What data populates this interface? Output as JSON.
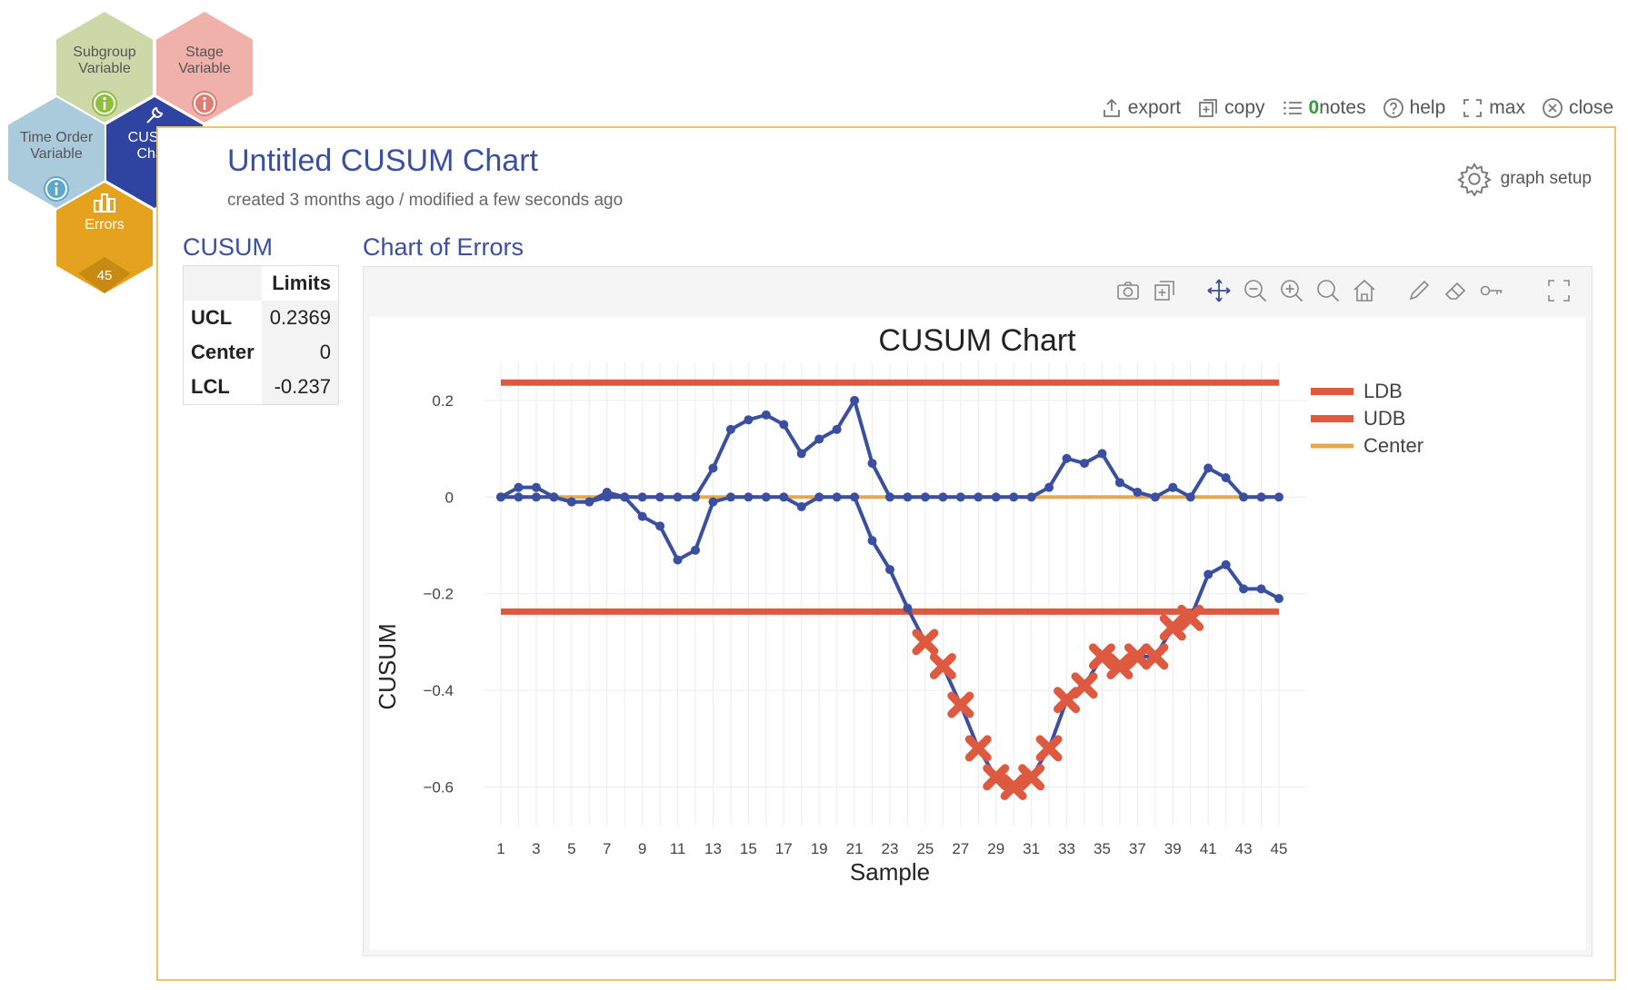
{
  "nav": {
    "subgroup_label": "Subgroup Variable",
    "stage_label": "Stage Variable",
    "time_label": "Time Order Variable",
    "cusum_label": "CUSUM Chart",
    "errors_label": "Errors",
    "errors_count": "45"
  },
  "toolbar": {
    "export": "export",
    "copy": "copy",
    "notes_count": "0",
    "notes": "notes",
    "help": "help",
    "max": "max",
    "close": "close"
  },
  "page": {
    "title": "Untitled CUSUM Chart",
    "meta": "created 3 months ago / modified a few seconds ago",
    "graph_setup": "graph setup"
  },
  "limits_section": {
    "title": "CUSUM",
    "header": "Limits",
    "rows": [
      {
        "label": "UCL",
        "value": "0.2369"
      },
      {
        "label": "Center",
        "value": "0"
      },
      {
        "label": "LCL",
        "value": "-0.237"
      }
    ]
  },
  "chart_section": {
    "title": "Chart of Errors"
  },
  "colors": {
    "series": "#3b4fa0",
    "limit": "#dd5a40",
    "center": "#e5a84b",
    "out_marker": "#dd5a40"
  },
  "chart_data": {
    "type": "line",
    "title": "CUSUM Chart",
    "xlabel": "Sample",
    "ylabel": "CUSUM",
    "xlim": [
      1,
      45
    ],
    "ylim": [
      -0.68,
      0.26
    ],
    "x_ticks": [
      1,
      3,
      5,
      7,
      9,
      11,
      13,
      15,
      17,
      19,
      21,
      23,
      25,
      27,
      29,
      31,
      33,
      35,
      37,
      39,
      41,
      43,
      45
    ],
    "y_ticks": [
      {
        "value": 0.2,
        "label": "0.2"
      },
      {
        "value": 0,
        "label": "0"
      },
      {
        "value": -0.2,
        "label": "−0.2"
      },
      {
        "value": -0.4,
        "label": "−0.4"
      },
      {
        "value": -0.6,
        "label": "−0.6"
      }
    ],
    "grid": true,
    "legend_position": "top-right",
    "legend": [
      "LDB",
      "UDB",
      "Center"
    ],
    "ucl": 0.2369,
    "lcl": -0.237,
    "center": 0,
    "series": [
      {
        "values": [
          0,
          0.02,
          0.02,
          0,
          -0.01,
          -0.01,
          0,
          0,
          0,
          0,
          0,
          0,
          0.06,
          0.14,
          0.16,
          0.17,
          0.15,
          0.09,
          0.12,
          0.14,
          0.2,
          0.07,
          0,
          0,
          0,
          0,
          0,
          0,
          0,
          0,
          0,
          0.02,
          0.08,
          0.07,
          0.09,
          0.03,
          0.01,
          0,
          0.02,
          0,
          0.06,
          0.04,
          0,
          0,
          0
        ]
      },
      {
        "values": [
          0,
          0,
          0,
          0,
          -0.01,
          -0.01,
          0.01,
          0,
          -0.04,
          -0.06,
          -0.13,
          -0.11,
          -0.01,
          0,
          0,
          0,
          0,
          -0.02,
          0,
          0,
          0,
          -0.09,
          -0.15,
          -0.23,
          -0.3,
          -0.35,
          -0.43,
          -0.52,
          -0.58,
          -0.6,
          -0.58,
          -0.52,
          -0.42,
          -0.39,
          -0.33,
          -0.35,
          -0.33,
          -0.33,
          -0.27,
          -0.25,
          -0.16,
          -0.14,
          -0.19,
          -0.19,
          -0.21
        ]
      }
    ]
  }
}
